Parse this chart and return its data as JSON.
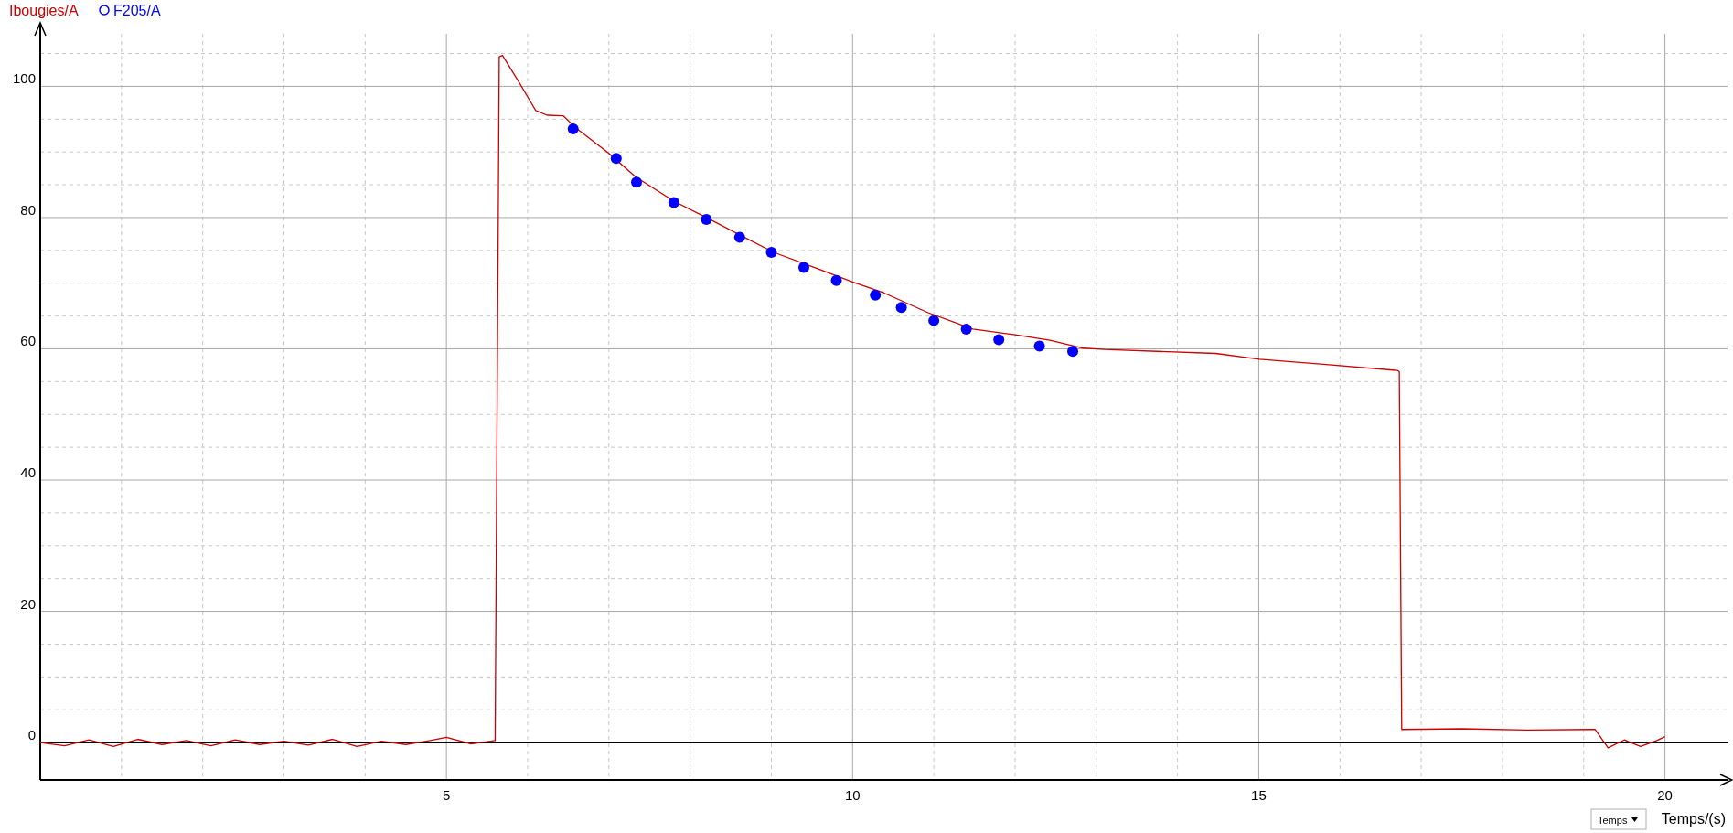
{
  "chart_data": {
    "type": "line",
    "xlabel": "Temps/(s)",
    "annotations": [
      "Temps"
    ],
    "xlim": [
      0,
      20.77
    ],
    "ylim": [
      -5.7,
      108
    ],
    "xticks": [
      {
        "value": 1,
        "label": null
      },
      {
        "value": 2,
        "label": null
      },
      {
        "value": 3,
        "label": null
      },
      {
        "value": 4,
        "label": null
      },
      5,
      {
        "value": 6,
        "label": null
      },
      {
        "value": 7,
        "label": null
      },
      {
        "value": 8,
        "label": null
      },
      {
        "value": 9,
        "label": null
      },
      10,
      {
        "value": 11,
        "label": null
      },
      {
        "value": 12,
        "label": null
      },
      {
        "value": 13,
        "label": null
      },
      {
        "value": 14,
        "label": null
      },
      15,
      {
        "value": 16,
        "label": null
      },
      {
        "value": 17,
        "label": null
      },
      {
        "value": 18,
        "label": null
      },
      {
        "value": 19,
        "label": null
      },
      20
    ],
    "yticks": [
      0,
      {
        "value": 5,
        "label": null
      },
      {
        "value": 10,
        "label": null
      },
      {
        "value": 15,
        "label": null
      },
      20,
      {
        "value": 25,
        "label": null
      },
      {
        "value": 30,
        "label": null
      },
      {
        "value": 35,
        "label": null
      },
      40,
      {
        "value": 45,
        "label": null
      },
      {
        "value": 50,
        "label": null
      },
      {
        "value": 55,
        "label": null
      },
      60,
      {
        "value": 65,
        "label": null
      },
      {
        "value": 70,
        "label": null
      },
      {
        "value": 75,
        "label": null
      },
      80,
      {
        "value": 85,
        "label": null
      },
      {
        "value": 90,
        "label": null
      },
      {
        "value": 95,
        "label": null
      },
      100,
      {
        "value": 105,
        "label": null
      }
    ],
    "grid": true,
    "legend": "top left",
    "ref_lines": [
      {
        "axis": "y",
        "value": 0,
        "color": "#000000"
      }
    ],
    "series": [
      {
        "name": "Ibougies/A",
        "color": "#cc0000",
        "marker": "none",
        "x": [
          0,
          0.3,
          0.6,
          0.9,
          1.2,
          1.5,
          1.8,
          2.1,
          2.4,
          2.7,
          3.0,
          3.3,
          3.6,
          3.9,
          4.2,
          4.5,
          4.8,
          5.0,
          5.3,
          5.6,
          5.65,
          5.69,
          5.9,
          6.1,
          6.24,
          6.44,
          6.58,
          6.99,
          7.33,
          7.8,
          8.2,
          8.62,
          9.03,
          9.57,
          10.0,
          10.39,
          10.93,
          11.48,
          12.02,
          12.43,
          12.84,
          13.1,
          14.47,
          15.01,
          15.83,
          16.71,
          16.73,
          16.76,
          17.5,
          18.3,
          19.1,
          19.14,
          19.3,
          19.5,
          19.7,
          19.9,
          20.0
        ],
        "values": [
          0,
          -0.5,
          0.4,
          -0.6,
          0.5,
          -0.3,
          0.3,
          -0.5,
          0.4,
          -0.3,
          0.2,
          -0.4,
          0.5,
          -0.6,
          0.2,
          -0.3,
          0.3,
          0.8,
          -0.2,
          0.3,
          104.5,
          104.7,
          100.5,
          96.3,
          95.6,
          95.5,
          93.8,
          89.9,
          86.2,
          82.5,
          80,
          77.3,
          74.7,
          72.2,
          70.2,
          68.5,
          65.5,
          63,
          62.1,
          61.3,
          60.1,
          59.9,
          59.3,
          58.4,
          57.6,
          56.7,
          56.5,
          2,
          2.1,
          1.9,
          2,
          2,
          -0.8,
          0.4,
          -0.6,
          0.3,
          0.9
        ]
      },
      {
        "name": "F205/A",
        "type": "scatter",
        "color": "#0000ff",
        "marker": "circle",
        "x": [
          6.56,
          7.09,
          7.34,
          7.8,
          8.2,
          8.61,
          9.0,
          9.4,
          9.8,
          10.28,
          10.6,
          11.0,
          11.4,
          11.8,
          12.3,
          12.71
        ],
        "values": [
          93.5,
          89.0,
          85.4,
          82.3,
          79.7,
          77.0,
          74.7,
          72.4,
          70.4,
          68.2,
          66.3,
          64.3,
          63.0,
          61.4,
          60.4,
          59.6
        ]
      }
    ]
  }
}
